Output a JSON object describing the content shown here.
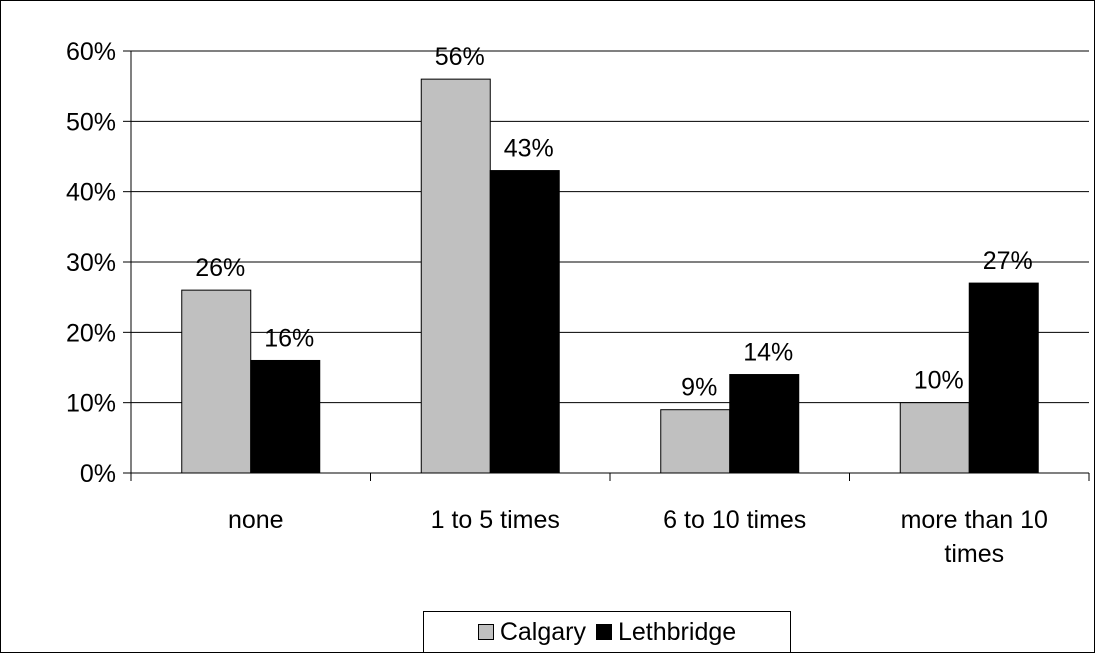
{
  "chart_data": {
    "type": "bar",
    "categories": [
      "none",
      "1 to 5 times",
      "6 to 10 times",
      "more than 10 times"
    ],
    "series": [
      {
        "name": "Calgary",
        "values": [
          26,
          56,
          9,
          10
        ],
        "labels": [
          "26%",
          "56%",
          "9%",
          "10%"
        ],
        "color": "#c0c0c0"
      },
      {
        "name": "Lethbridge",
        "values": [
          16,
          43,
          14,
          27
        ],
        "labels": [
          "16%",
          "43%",
          "14%",
          "27%"
        ],
        "color": "#000000"
      }
    ],
    "yticks": [
      "0%",
      "10%",
      "20%",
      "30%",
      "40%",
      "50%",
      "60%"
    ],
    "ylim": [
      0,
      60
    ],
    "grid": true,
    "legend_position": "bottom",
    "title": "",
    "xlabel": "",
    "ylabel": ""
  }
}
